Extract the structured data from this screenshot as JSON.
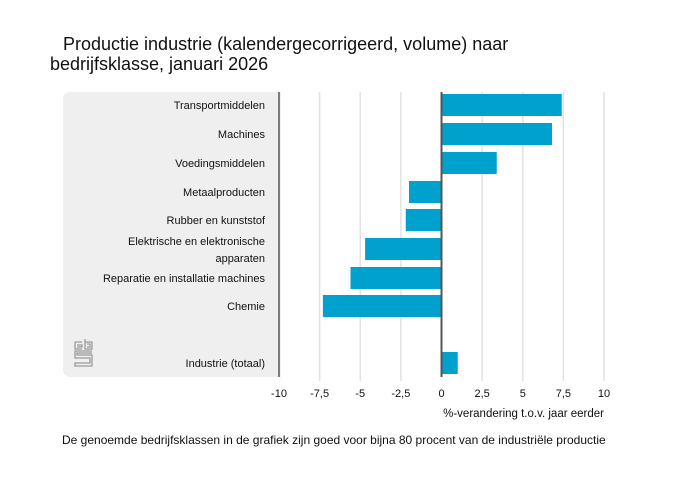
{
  "title_line1": "Productie industrie (kalendergecorrigeerd, volume) naar",
  "title_line2": "bedrijfsklasse, januari 2026",
  "footnote": "De genoemde bedrijfsklassen in de grafiek zijn goed voor bijna 80 procent van de industriële productie",
  "logo": "cbs-logo-icon",
  "bar_color": "#00a1cd",
  "chart_data": {
    "type": "bar",
    "orientation": "horizontal",
    "title": "Productie industrie (kalendergecorrigeerd, volume) naar bedrijfsklasse, januari 2026",
    "xlabel": "%-verandering t.o.v. jaar eerder",
    "ylabel": "",
    "xlim": [
      -10,
      10
    ],
    "xticks": [
      -10,
      -7.5,
      -5,
      -2.5,
      0,
      2.5,
      5,
      7.5,
      10
    ],
    "xtick_labels": [
      "-10",
      "-7,5",
      "-5",
      "-2,5",
      "0",
      "2,5",
      "5",
      "7,5",
      "10"
    ],
    "grid": true,
    "categories": [
      [
        "Transportmiddelen"
      ],
      [
        "Machines"
      ],
      [
        "Voedingsmiddelen"
      ],
      [
        "Metaalproducten"
      ],
      [
        "Rubber en kunststof"
      ],
      [
        "Elektrische en elektronische",
        "apparaten"
      ],
      [
        "Reparatie en installatie machines"
      ],
      [
        "Chemie"
      ],
      [
        "Industrie (totaal)"
      ]
    ],
    "values": [
      7.4,
      6.8,
      3.4,
      -2.0,
      -2.2,
      -4.7,
      -5.6,
      -7.3,
      1.0
    ]
  }
}
